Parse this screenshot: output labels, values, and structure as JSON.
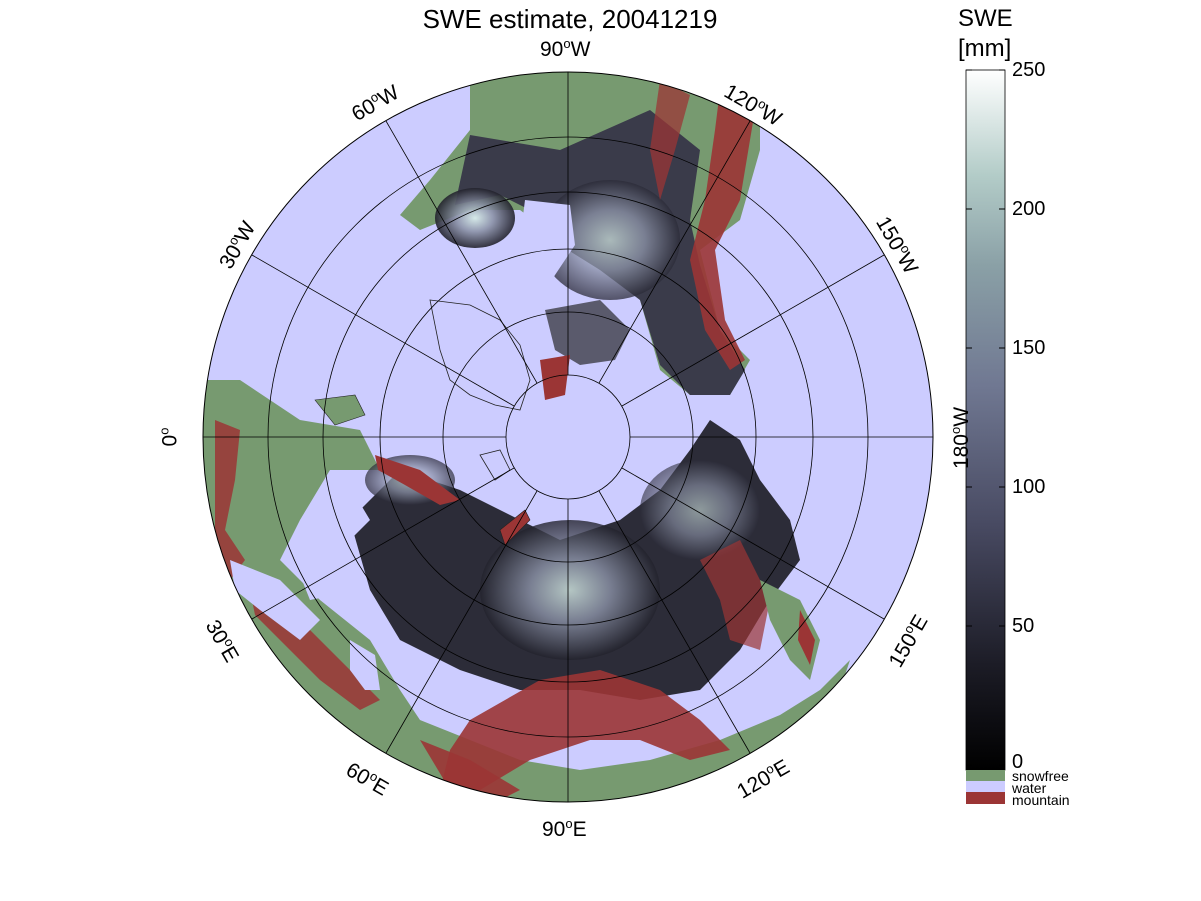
{
  "title": "SWE estimate, 20041219",
  "colorbar": {
    "title_line1": "SWE",
    "title_line2": "[mm]",
    "ticks": [
      "0",
      "50",
      "100",
      "150",
      "200",
      "250"
    ],
    "range": [
      0,
      250
    ],
    "categories": [
      {
        "label": "snowfree",
        "color": "#779a70"
      },
      {
        "label": "water",
        "color": "#ccccff"
      },
      {
        "label": "mountain",
        "color": "#9b3535"
      }
    ]
  },
  "map": {
    "projection": "north polar stereographic",
    "water_color": "#ccccff",
    "snowfree_color": "#779a70",
    "mountain_color": "#9b3535",
    "longitude_labels": {
      "lon_90W": "90",
      "dir_90W": "W",
      "lon_60W": "60",
      "dir_60W": "W",
      "lon_120W": "120",
      "dir_120W": "W",
      "lon_30W": "30",
      "dir_30W": "W",
      "lon_150W": "150",
      "dir_150W": "W",
      "lon_0": "0",
      "lon_180W": "180",
      "dir_180W": "W",
      "lon_30E": "30",
      "dir_30E": "E",
      "lon_150E": "150",
      "dir_150E": "E",
      "lon_60E": "60",
      "dir_60E": "E",
      "lon_120E": "120",
      "dir_120E": "E",
      "lon_90E": "90",
      "dir_90E": "E"
    }
  }
}
